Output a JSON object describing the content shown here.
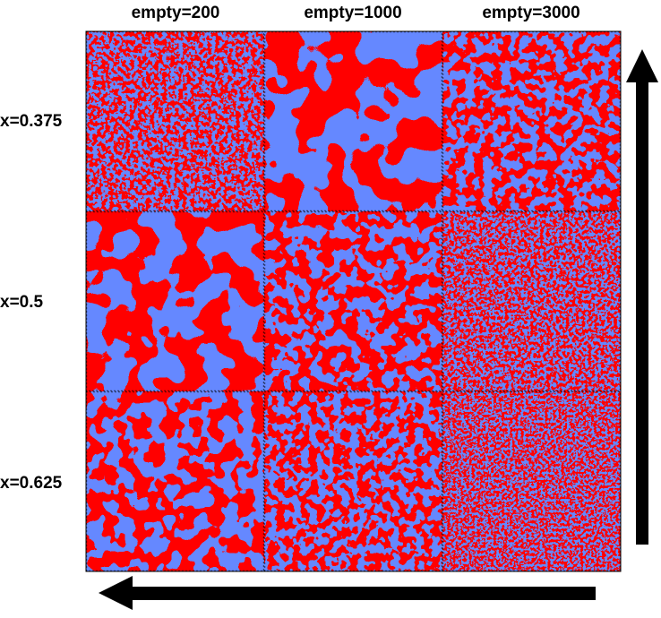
{
  "columns": [
    "empty=200",
    "empty=1000",
    "empty=3000"
  ],
  "rows": [
    "x=0.375",
    "x=0.5",
    "x=0.625"
  ]
}
